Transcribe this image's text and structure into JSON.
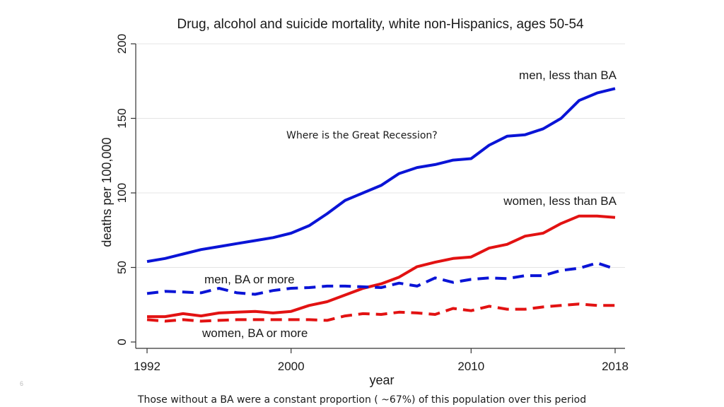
{
  "slide_number": "6",
  "footnote": "Those without a BA were a constant proportion ( ~67%) of this population over this period",
  "chart_data": {
    "type": "line",
    "title": "Drug, alcohol and suicide mortality, white non-Hispanics, ages 50-54",
    "xlabel": "year",
    "ylabel": "deaths per 100,000",
    "xlim": [
      1992,
      2018
    ],
    "ylim": [
      0,
      200
    ],
    "x_ticks": [
      1992,
      2000,
      2010,
      2018
    ],
    "x_tick_labels": [
      "1992",
      "2000",
      "2010",
      "2018"
    ],
    "y_ticks": [
      0,
      50,
      100,
      150,
      200
    ],
    "y_tick_labels": [
      "0",
      "50",
      "100",
      "150",
      "200"
    ],
    "grid": true,
    "annotation": "Where is the Great Recession?",
    "x": [
      1992,
      1993,
      1994,
      1995,
      1996,
      1997,
      1998,
      1999,
      2000,
      2001,
      2002,
      2003,
      2004,
      2005,
      2006,
      2007,
      2008,
      2009,
      2010,
      2011,
      2012,
      2013,
      2014,
      2015,
      2016,
      2017,
      2018
    ],
    "series": [
      {
        "name": "men, less than BA",
        "label": "men, less than BA",
        "color": "#0a14d6",
        "dash": "solid",
        "values": [
          54,
          56,
          59,
          62,
          64,
          66,
          68,
          70,
          73,
          78,
          86,
          95,
          100,
          105,
          113,
          117,
          119,
          122,
          123,
          132,
          138,
          139,
          143,
          150,
          162,
          167,
          170
        ]
      },
      {
        "name": "women, less than BA",
        "label": "women, less than BA",
        "color": "#e21212",
        "dash": "solid",
        "values": [
          17,
          17,
          19,
          17.5,
          19.5,
          20,
          20.5,
          19.5,
          20.5,
          24.5,
          27,
          31.5,
          36,
          39,
          43.5,
          50.5,
          53.5,
          56,
          57,
          63,
          65.5,
          71,
          73,
          79.5,
          84.5,
          84.5,
          83.5
        ]
      },
      {
        "name": "men, BA or more",
        "label": "men, BA or more",
        "color": "#0a14d6",
        "dash": "dashed",
        "values": [
          32.5,
          34,
          33.5,
          33,
          36,
          33,
          32,
          34.5,
          36,
          36.5,
          37.5,
          37.5,
          37,
          36.5,
          39.5,
          37.5,
          43,
          40,
          42,
          43,
          42.5,
          44.5,
          44.5,
          48,
          49.5,
          53,
          49
        ]
      },
      {
        "name": "women, BA or more",
        "label": "women, BA or more",
        "color": "#e21212",
        "dash": "dashed",
        "values": [
          15,
          14,
          15,
          14,
          14.5,
          15,
          15,
          15,
          15,
          15,
          14.5,
          17.5,
          19,
          18.5,
          20,
          19.5,
          18.5,
          22.5,
          21,
          24,
          22,
          22,
          23.5,
          24.5,
          25.5,
          24.5,
          24.5
        ]
      }
    ]
  }
}
